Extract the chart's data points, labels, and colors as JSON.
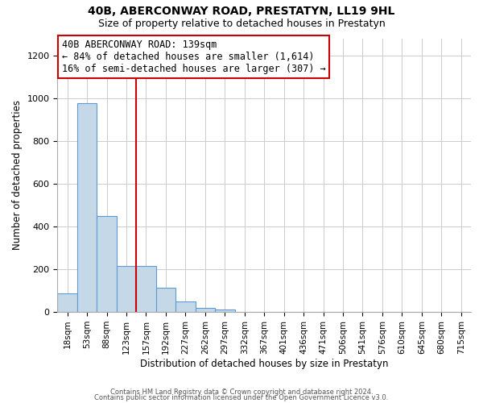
{
  "title": "40B, ABERCONWAY ROAD, PRESTATYN, LL19 9HL",
  "subtitle": "Size of property relative to detached houses in Prestatyn",
  "xlabel": "Distribution of detached houses by size in Prestatyn",
  "ylabel": "Number of detached properties",
  "bar_labels": [
    "18sqm",
    "53sqm",
    "88sqm",
    "123sqm",
    "157sqm",
    "192sqm",
    "227sqm",
    "262sqm",
    "297sqm",
    "332sqm",
    "367sqm",
    "401sqm",
    "436sqm",
    "471sqm",
    "506sqm",
    "541sqm",
    "576sqm",
    "610sqm",
    "645sqm",
    "680sqm",
    "715sqm"
  ],
  "bar_values": [
    88,
    975,
    450,
    215,
    215,
    115,
    50,
    20,
    12,
    0,
    0,
    0,
    0,
    0,
    0,
    0,
    0,
    0,
    0,
    0,
    0
  ],
  "bar_color": "#c5d8e8",
  "bar_edge_color": "#5b9bd5",
  "vline_x": 3.5,
  "vline_color": "#cc0000",
  "annotation_title": "40B ABERCONWAY ROAD: 139sqm",
  "annotation_line1": "← 84% of detached houses are smaller (1,614)",
  "annotation_line2": "16% of semi-detached houses are larger (307) →",
  "annotation_box_color": "#ffffff",
  "annotation_box_edge_color": "#cc0000",
  "ylim": [
    0,
    1280
  ],
  "yticks": [
    0,
    200,
    400,
    600,
    800,
    1000,
    1200
  ],
  "footer_line1": "Contains HM Land Registry data © Crown copyright and database right 2024.",
  "footer_line2": "Contains public sector information licensed under the Open Government Licence v3.0.",
  "background_color": "#ffffff",
  "grid_color": "#cccccc"
}
